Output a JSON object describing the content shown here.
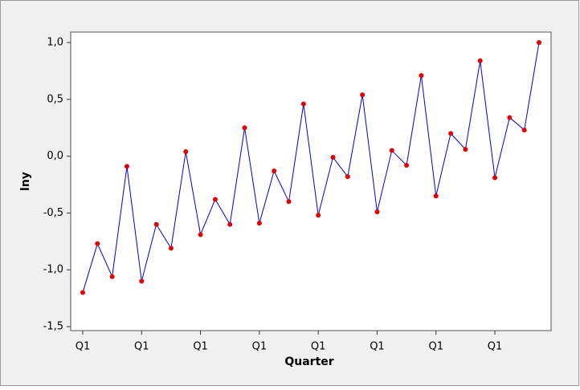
{
  "chart_data": {
    "type": "line",
    "x_label": "Quarter",
    "y_label": "lny",
    "categories": [
      "Q1",
      null,
      null,
      null,
      "Q1",
      null,
      null,
      null,
      "Q1",
      null,
      null,
      null,
      "Q1",
      null,
      null,
      null,
      "Q1",
      null,
      null,
      null,
      "Q1",
      null,
      null,
      null,
      "Q1",
      null,
      null,
      null,
      "Q1",
      null,
      null,
      null
    ],
    "series": [
      {
        "name": "lny",
        "color": "#0000cc",
        "marker_color": "#e00000",
        "values": [
          -1.2,
          -0.77,
          -1.06,
          -0.09,
          -1.1,
          -0.6,
          -0.81,
          0.04,
          -0.69,
          -0.38,
          -0.6,
          0.25,
          -0.59,
          -0.13,
          -0.4,
          0.46,
          -0.52,
          -0.01,
          -0.18,
          0.54,
          -0.49,
          0.05,
          -0.08,
          0.71,
          -0.35,
          0.2,
          0.06,
          0.84,
          -0.19,
          0.34,
          0.23,
          1.0
        ]
      }
    ],
    "ylim": [
      -1.535,
      1.092
    ],
    "yticks": [
      {
        "value": -1.5,
        "label": "-1,5"
      },
      {
        "value": -1.0,
        "label": "-1,0"
      },
      {
        "value": -0.5,
        "label": "-0,5"
      },
      {
        "value": 0.0,
        "label": "0,0"
      },
      {
        "value": 0.5,
        "label": "0,5"
      },
      {
        "value": 1.0,
        "label": "1,0"
      }
    ],
    "grid": false
  }
}
